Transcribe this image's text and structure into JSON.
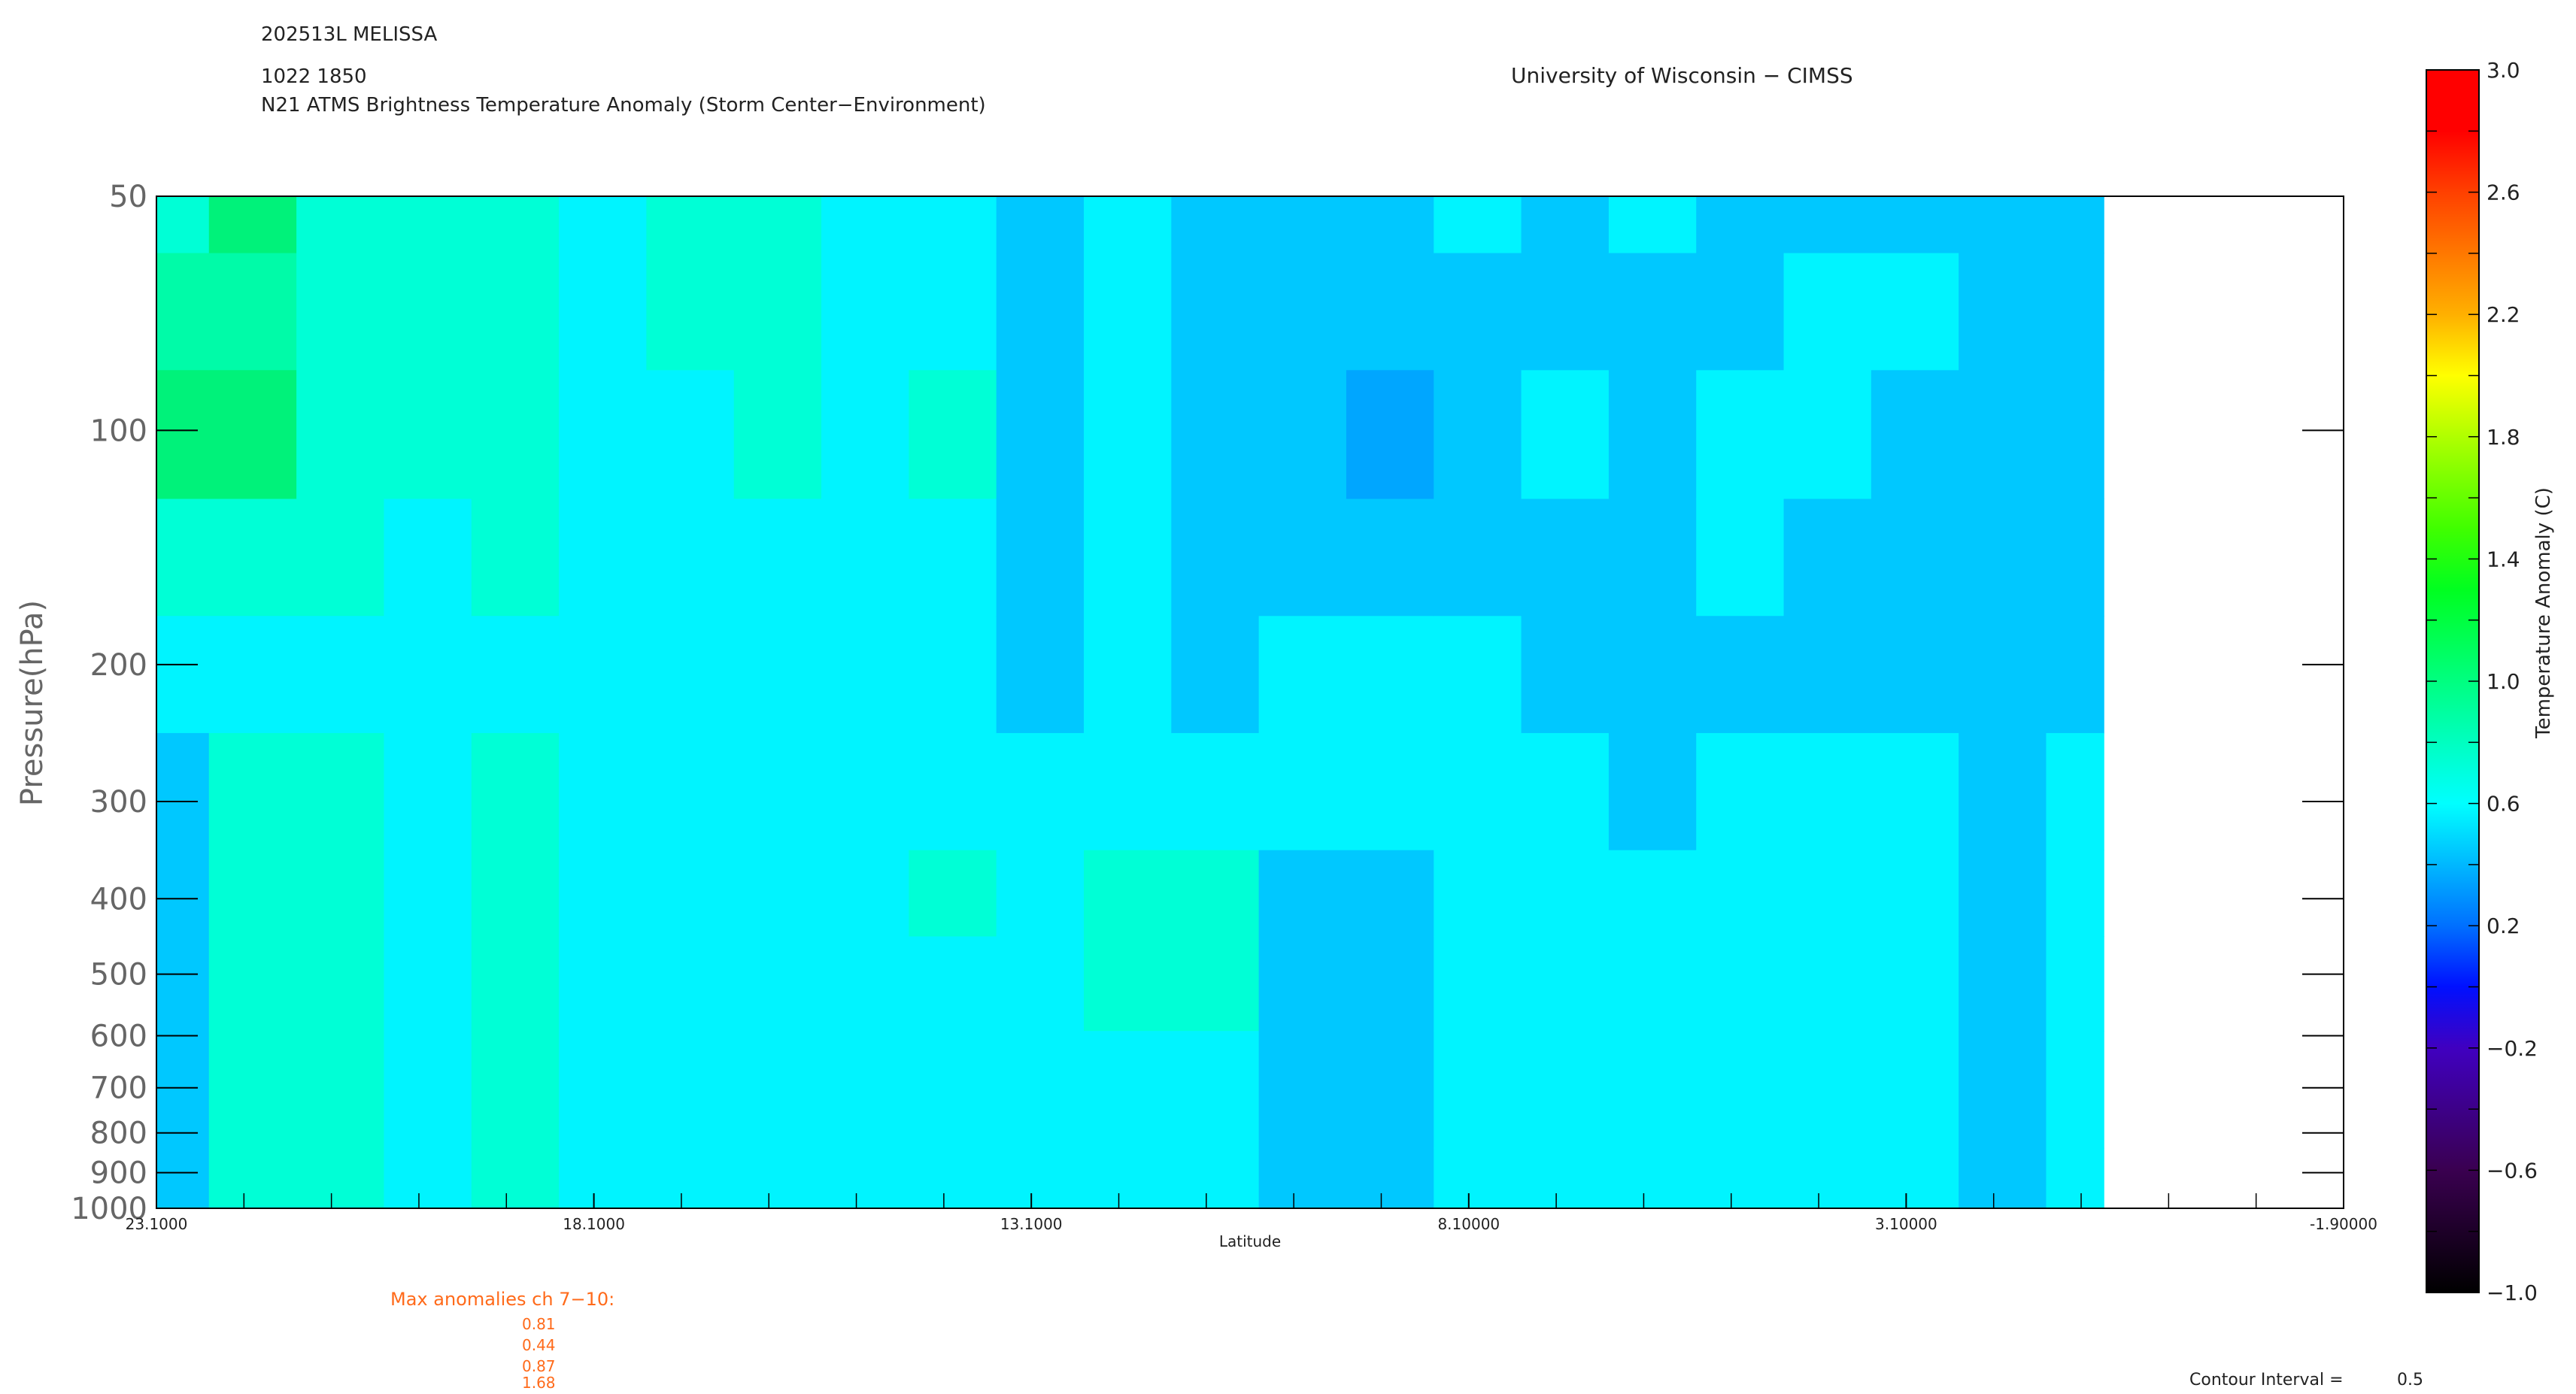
{
  "header": {
    "storm": "202513L MELISSA",
    "datetime": "1022 1850",
    "subtitle": "N21 ATMS Brightness Temperature Anomaly (Storm Center−Environment)",
    "institution": "University of Wisconsin − CIMSS"
  },
  "max_anomalies": {
    "title": "Max anomalies ch 7−10:",
    "values": [
      "0.81",
      "0.44",
      "0.87",
      "1.68"
    ],
    "color": "#ff6a1a"
  },
  "contour_interval": {
    "label": "Contour Interval =",
    "value": "0.5"
  },
  "chart_data": {
    "type": "heatmap",
    "xlabel": "Latitude",
    "ylabel": "Pressure(hPa)",
    "xlim": [
      23.1,
      -1.9
    ],
    "ylim": [
      50,
      1000
    ],
    "yscale": "log",
    "x_ticks": [
      "23.1000",
      "18.1000",
      "13.1000",
      "8.10000",
      "3.10000",
      "-1.90000"
    ],
    "x_tick_values": [
      23.1,
      18.1,
      13.1,
      8.1,
      3.1,
      -1.9
    ],
    "y_ticks": [
      "50",
      "100",
      "200",
      "300",
      "400",
      "500",
      "600",
      "700",
      "800",
      "900",
      "1000"
    ],
    "y_tick_values": [
      50,
      100,
      200,
      300,
      400,
      500,
      600,
      700,
      800,
      900,
      1000
    ],
    "data_lat_extent": [
      23.1,
      0.84
    ],
    "latitudes": [
      23,
      22,
      21,
      20,
      19,
      18,
      17,
      16,
      15,
      14,
      13,
      12,
      11,
      10,
      9,
      8,
      7,
      6,
      5,
      4,
      3,
      2,
      1
    ],
    "pressures": [
      50,
      70,
      100,
      150,
      200,
      300,
      400,
      500,
      700,
      1000
    ],
    "values": [
      [
        0.9,
        1.1,
        0.9,
        0.8,
        0.8,
        0.6,
        0.8,
        0.8,
        0.6,
        0.6,
        0.5,
        0.7,
        0.4,
        0.4,
        0.4,
        0.6,
        0.4,
        0.6,
        0.4,
        0.4,
        0.4,
        0.4,
        0.4
      ],
      [
        1.0,
        1.0,
        0.8,
        0.8,
        0.8,
        0.6,
        0.8,
        0.8,
        0.6,
        0.6,
        0.4,
        0.6,
        0.4,
        0.4,
        0.3,
        0.4,
        0.5,
        0.4,
        0.5,
        0.6,
        0.6,
        0.4,
        0.4
      ],
      [
        1.1,
        1.1,
        0.8,
        0.9,
        0.8,
        0.6,
        0.6,
        0.8,
        0.6,
        0.8,
        0.4,
        0.6,
        0.4,
        0.4,
        0.2,
        0.4,
        0.6,
        0.4,
        0.6,
        0.6,
        0.4,
        0.4,
        0.4
      ],
      [
        0.9,
        0.9,
        0.8,
        0.6,
        0.8,
        0.6,
        0.6,
        0.6,
        0.6,
        0.6,
        0.4,
        0.6,
        0.4,
        0.4,
        0.3,
        0.5,
        0.4,
        0.4,
        0.6,
        0.4,
        0.4,
        0.4,
        0.4
      ],
      [
        0.6,
        0.7,
        0.6,
        0.6,
        0.6,
        0.6,
        0.6,
        0.6,
        0.6,
        0.6,
        0.4,
        0.6,
        0.4,
        0.6,
        0.6,
        0.6,
        0.4,
        0.4,
        0.4,
        0.4,
        0.4,
        0.4,
        0.4
      ],
      [
        0.5,
        0.9,
        0.8,
        0.6,
        0.8,
        0.6,
        0.6,
        0.6,
        0.6,
        0.6,
        0.6,
        0.6,
        0.6,
        0.6,
        0.6,
        0.6,
        0.6,
        0.4,
        0.6,
        0.6,
        0.6,
        0.4,
        0.6
      ],
      [
        0.4,
        0.8,
        0.8,
        0.6,
        0.8,
        0.6,
        0.6,
        0.6,
        0.6,
        0.8,
        0.6,
        0.8,
        0.8,
        0.4,
        0.4,
        0.6,
        0.6,
        0.6,
        0.6,
        0.6,
        0.6,
        0.4,
        0.6
      ],
      [
        0.4,
        0.8,
        0.8,
        0.6,
        0.8,
        0.6,
        0.6,
        0.6,
        0.6,
        0.7,
        0.6,
        0.8,
        0.8,
        0.4,
        0.4,
        0.6,
        0.6,
        0.6,
        0.6,
        0.6,
        0.6,
        0.4,
        0.6
      ],
      [
        0.4,
        0.8,
        0.8,
        0.6,
        0.8,
        0.6,
        0.6,
        0.6,
        0.6,
        0.6,
        0.6,
        0.6,
        0.6,
        0.4,
        0.4,
        0.6,
        0.6,
        0.6,
        0.6,
        0.6,
        0.6,
        0.4,
        0.6
      ],
      [
        0.4,
        0.8,
        0.8,
        0.6,
        0.8,
        0.6,
        0.6,
        0.6,
        0.6,
        0.6,
        0.6,
        0.6,
        0.6,
        0.4,
        0.4,
        0.6,
        0.6,
        0.6,
        0.6,
        0.6,
        0.6,
        0.4,
        0.6
      ]
    ],
    "colorbar": {
      "label": "Temperature Anomaly (C)",
      "range": [
        -1.0,
        3.0
      ],
      "ticks": [
        "3.0",
        "2.6",
        "2.2",
        "1.8",
        "1.4",
        "1.0",
        "0.6",
        "0.2",
        "−0.2",
        "−0.6",
        "−1.0"
      ],
      "tick_values": [
        3.0,
        2.6,
        2.2,
        1.8,
        1.4,
        1.0,
        0.6,
        0.2,
        -0.2,
        -0.6,
        -1.0
      ],
      "stops": [
        {
          "v": -1.0,
          "c": "#000000"
        },
        {
          "v": -0.6,
          "c": "#3a0050"
        },
        {
          "v": -0.2,
          "c": "#4000c0"
        },
        {
          "v": 0.0,
          "c": "#0010ff"
        },
        {
          "v": 0.2,
          "c": "#0070ff"
        },
        {
          "v": 0.4,
          "c": "#00b8ff"
        },
        {
          "v": 0.6,
          "c": "#00ffff"
        },
        {
          "v": 0.8,
          "c": "#00ffc0"
        },
        {
          "v": 1.0,
          "c": "#00ff80"
        },
        {
          "v": 1.3,
          "c": "#00ff20"
        },
        {
          "v": 1.5,
          "c": "#40ff00"
        },
        {
          "v": 1.8,
          "c": "#b0ff00"
        },
        {
          "v": 2.0,
          "c": "#ffff00"
        },
        {
          "v": 2.2,
          "c": "#ffb000"
        },
        {
          "v": 2.6,
          "c": "#ff4000"
        },
        {
          "v": 2.8,
          "c": "#ff0000"
        },
        {
          "v": 3.0,
          "c": "#ff0000"
        }
      ]
    }
  }
}
